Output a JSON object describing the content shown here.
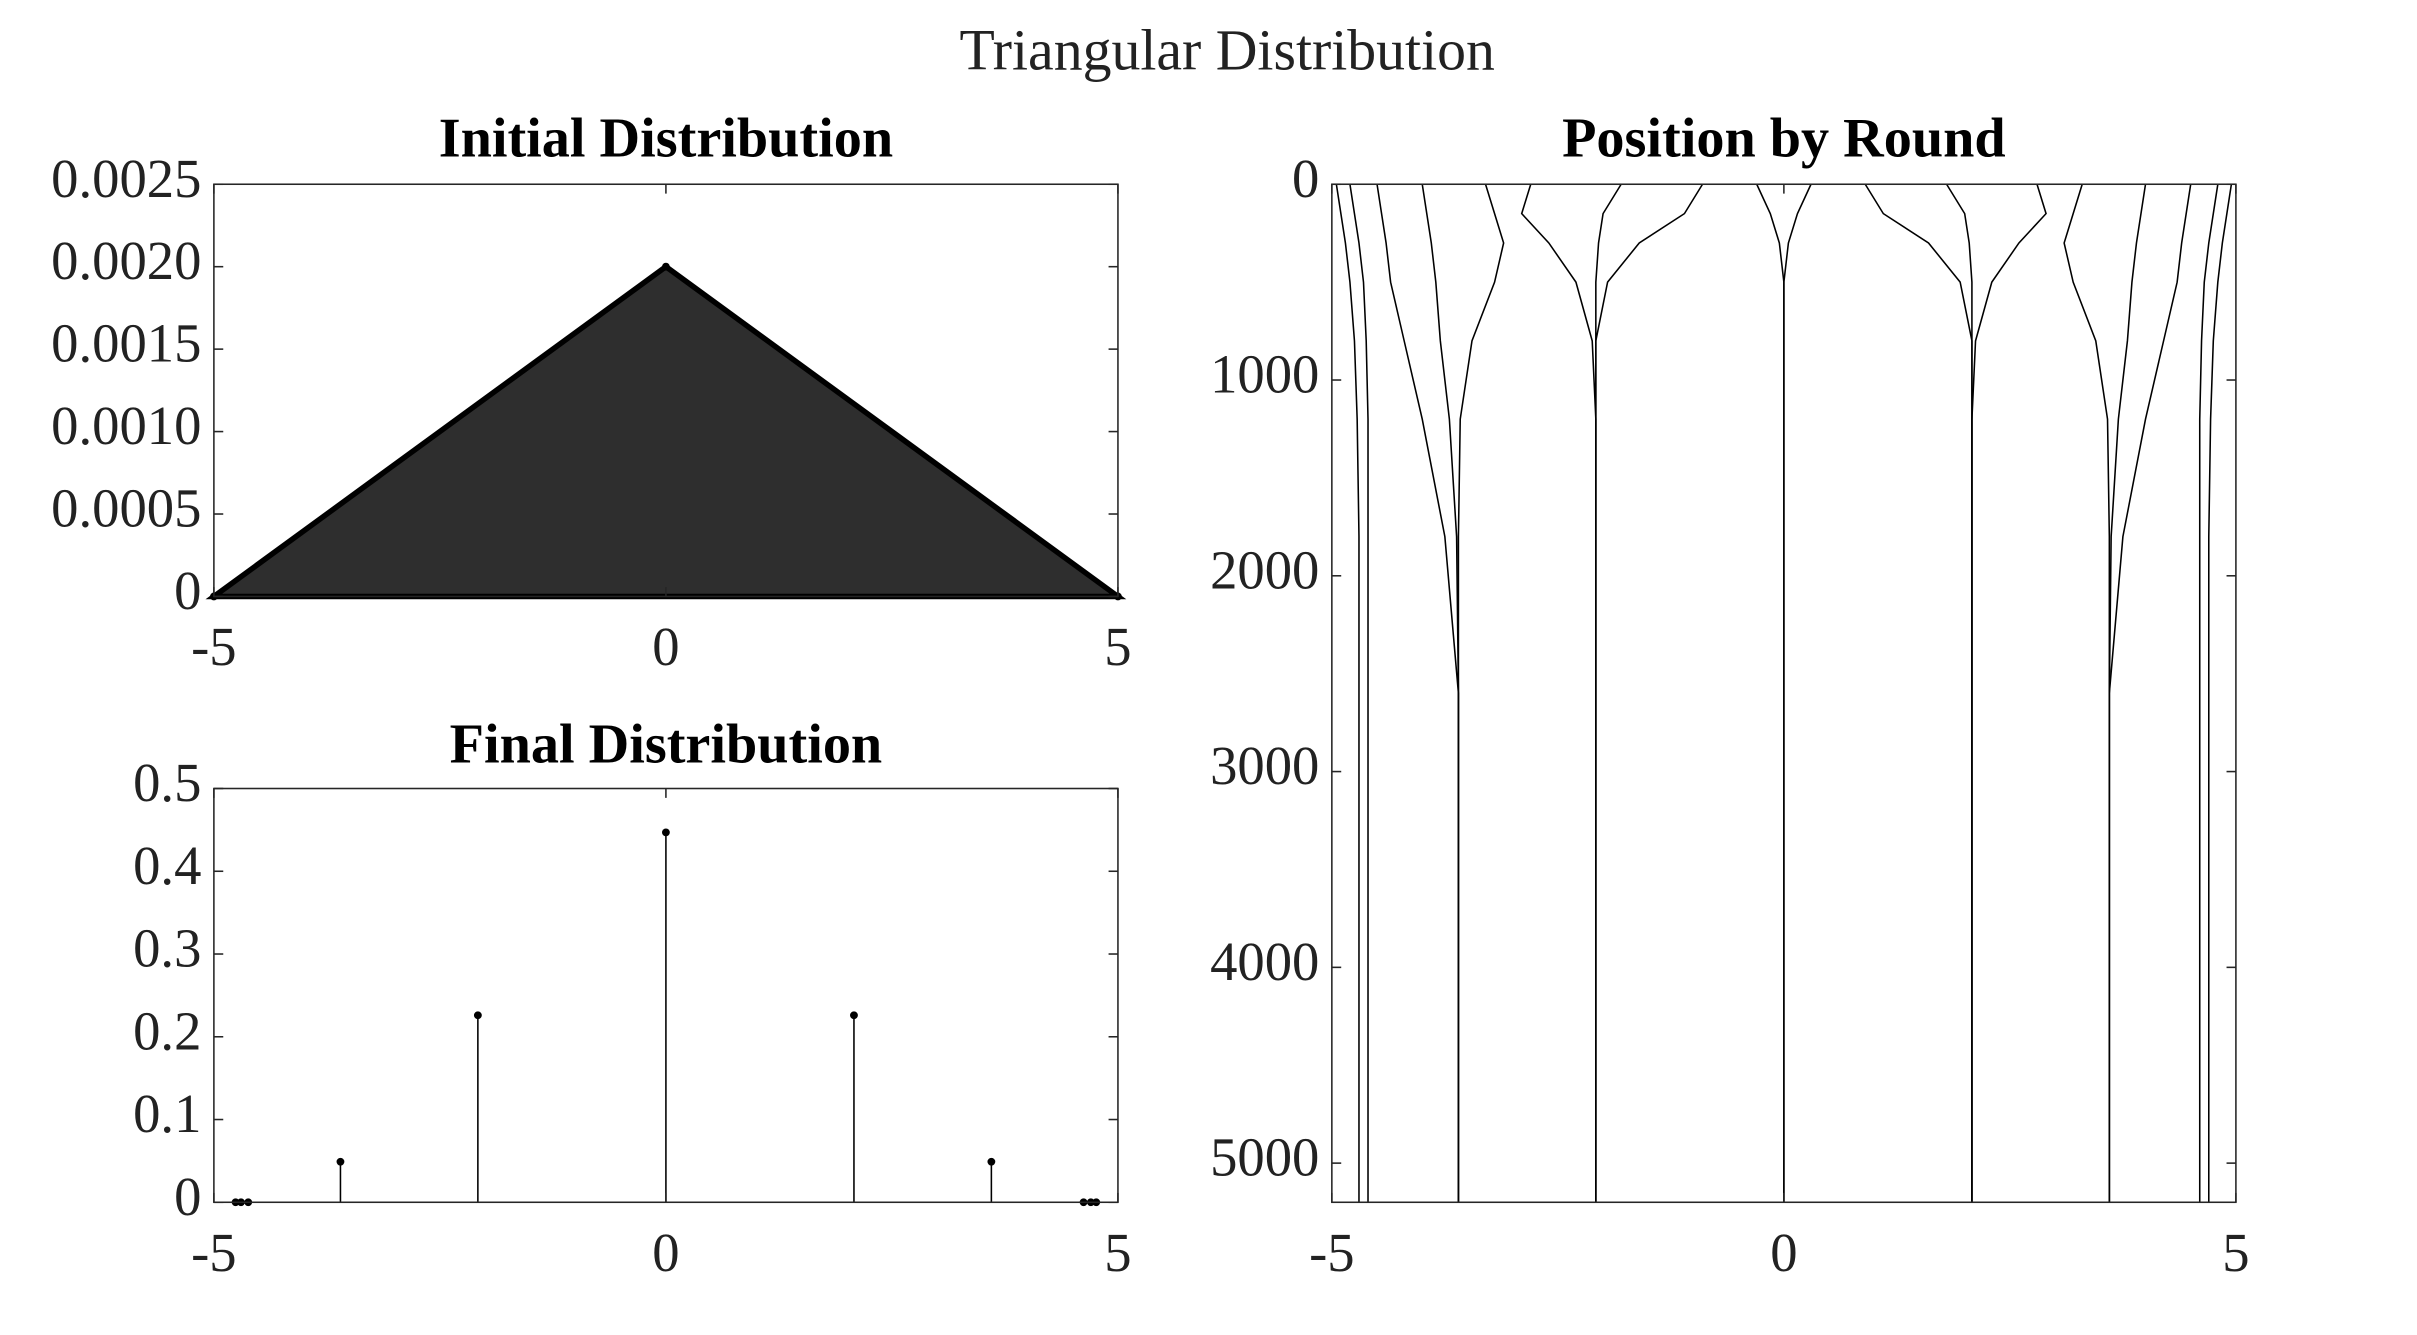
{
  "title": "Triangular Distribution",
  "chart_data": [
    {
      "type": "area",
      "title": "Initial Distribution",
      "color": "#000000",
      "x": [
        -5,
        0,
        5
      ],
      "values": [
        0,
        0.002,
        0
      ],
      "xlim": [
        -5,
        5
      ],
      "xticks": [
        -5,
        0,
        5
      ],
      "ylim": [
        0,
        0.0025
      ],
      "yticks": [
        0,
        0.0005,
        {
          "value": 0.001,
          "label": "0.0010"
        },
        0.0015,
        {
          "value": 0.002,
          "label": "0.0020"
        },
        0.0025
      ]
    },
    {
      "type": "stem",
      "title": "Final Distribution",
      "color": "#000000",
      "x": [
        -4.76,
        -4.7,
        -4.62,
        -3.6,
        -2.08,
        0,
        2.08,
        3.6,
        4.62,
        4.7,
        4.76
      ],
      "values": [
        0,
        0,
        0,
        0.049,
        0.226,
        0.447,
        0.226,
        0.049,
        0,
        0,
        0
      ],
      "xlim": [
        -5,
        5
      ],
      "xticks": [
        -5,
        0,
        5
      ],
      "ylim": [
        0,
        0.5
      ],
      "yticks": [
        0,
        0.1,
        0.2,
        0.3,
        0.4,
        0.5
      ]
    },
    {
      "type": "line",
      "title": "Position by Round",
      "color": "#000000",
      "rounds": [
        0,
        150,
        300,
        500,
        800,
        1200,
        1800,
        2600,
        5200
      ],
      "xlim": [
        -5,
        5
      ],
      "xticks": [
        -5,
        0,
        5
      ],
      "ylim": [
        0,
        5200
      ],
      "yticks": [
        0,
        1000,
        2000,
        3000,
        4000,
        5000
      ],
      "y_reversed": true,
      "series": [
        {
          "values": [
            0.3,
            0.15,
            0.05,
            0,
            0,
            0,
            0,
            0,
            0
          ]
        },
        {
          "values": [
            0.9,
            1.1,
            1.6,
            1.95,
            2.08,
            2.08,
            2.08,
            2.08,
            2.08
          ]
        },
        {
          "values": [
            1.8,
            2,
            2.05,
            2.08,
            2.08,
            2.08,
            2.08,
            2.08,
            2.08
          ]
        },
        {
          "values": [
            2.8,
            2.9,
            2.6,
            2.3,
            2.12,
            2.08,
            2.08,
            2.08,
            2.08
          ]
        },
        {
          "values": [
            3.3,
            3.2,
            3.1,
            3.2,
            3.45,
            3.58,
            3.6,
            3.6,
            3.6
          ]
        },
        {
          "values": [
            4,
            3.95,
            3.9,
            3.85,
            3.8,
            3.7,
            3.62,
            3.6,
            3.6
          ]
        },
        {
          "values": [
            4.5,
            4.45,
            4.4,
            4.35,
            4.2,
            4,
            3.75,
            3.6,
            3.6
          ]
        },
        {
          "values": [
            4.95,
            4.9,
            4.85,
            4.8,
            4.75,
            4.72,
            4.7,
            4.7,
            4.7
          ]
        },
        {
          "values": [
            4.8,
            4.75,
            4.7,
            4.65,
            4.62,
            4.6,
            4.6,
            4.6,
            4.6
          ]
        },
        {
          "values": [
            -0.3,
            -0.15,
            -0.05,
            0,
            0,
            0,
            0,
            0,
            0
          ]
        },
        {
          "values": [
            -0.9,
            -1.1,
            -1.6,
            -1.95,
            -2.08,
            -2.08,
            -2.08,
            -2.08,
            -2.08
          ]
        },
        {
          "values": [
            -1.8,
            -2,
            -2.05,
            -2.08,
            -2.08,
            -2.08,
            -2.08,
            -2.08,
            -2.08
          ]
        },
        {
          "values": [
            -2.8,
            -2.9,
            -2.6,
            -2.3,
            -2.12,
            -2.08,
            -2.08,
            -2.08,
            -2.08
          ]
        },
        {
          "values": [
            -3.3,
            -3.2,
            -3.1,
            -3.2,
            -3.45,
            -3.58,
            -3.6,
            -3.6,
            -3.6
          ]
        },
        {
          "values": [
            -4,
            -3.95,
            -3.9,
            -3.85,
            -3.8,
            -3.7,
            -3.62,
            -3.6,
            -3.6
          ]
        },
        {
          "values": [
            -4.5,
            -4.45,
            -4.4,
            -4.35,
            -4.2,
            -4,
            -3.75,
            -3.6,
            -3.6
          ]
        },
        {
          "values": [
            -4.95,
            -4.9,
            -4.85,
            -4.8,
            -4.75,
            -4.72,
            -4.7,
            -4.7,
            -4.7
          ]
        },
        {
          "values": [
            -4.8,
            -4.75,
            -4.7,
            -4.65,
            -4.62,
            -4.6,
            -4.6,
            -4.6,
            -4.6
          ]
        }
      ]
    }
  ]
}
